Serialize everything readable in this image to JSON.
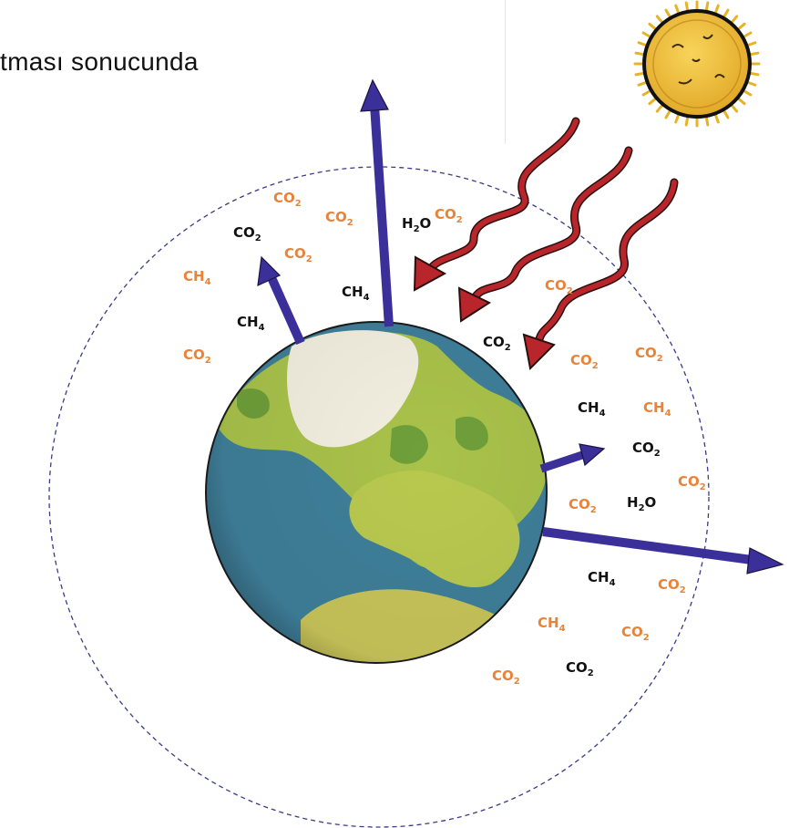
{
  "caption": "tması sonucunda",
  "colors": {
    "orange": "#e8833a",
    "black": "#111111",
    "arrow_outgoing": "#3b2f9a",
    "arrow_incoming": "#9b1c1c",
    "atmosphere_border": "#3a3a8a",
    "ocean": "#3f7f9a",
    "land": "#a9c24a",
    "ice": "#f2efe0",
    "sun": "#f2c232"
  },
  "icons": [
    "sun-icon",
    "earth-icon"
  ],
  "molecules": [
    {
      "label": "CO",
      "sub": "2",
      "color": "orange"
    },
    {
      "label": "CO",
      "sub": "2",
      "color": "orange"
    },
    {
      "label": "CO",
      "sub": "2",
      "color": "black"
    },
    {
      "label": "CO",
      "sub": "2",
      "color": "orange"
    },
    {
      "label": "H",
      "sub": "2",
      "tail": "O",
      "color": "black"
    },
    {
      "label": "CO",
      "sub": "2",
      "color": "orange"
    },
    {
      "label": "CH",
      "sub": "4",
      "color": "orange"
    },
    {
      "label": "CH",
      "sub": "4",
      "color": "black"
    },
    {
      "label": "CH",
      "sub": "4",
      "color": "black"
    },
    {
      "label": "CO",
      "sub": "2",
      "color": "orange"
    },
    {
      "label": "CO",
      "sub": "2",
      "color": "orange"
    },
    {
      "label": "CO",
      "sub": "2",
      "color": "black"
    },
    {
      "label": "CO",
      "sub": "2",
      "color": "orange"
    },
    {
      "label": "CO",
      "sub": "2",
      "color": "orange"
    },
    {
      "label": "CH",
      "sub": "4",
      "color": "black"
    },
    {
      "label": "CH",
      "sub": "4",
      "color": "orange"
    },
    {
      "label": "CO",
      "sub": "2",
      "color": "black"
    },
    {
      "label": "CO",
      "sub": "2",
      "color": "orange"
    },
    {
      "label": "CO",
      "sub": "2",
      "color": "orange"
    },
    {
      "label": "H",
      "sub": "2",
      "tail": "O",
      "color": "black"
    },
    {
      "label": "CH",
      "sub": "4",
      "color": "black"
    },
    {
      "label": "CO",
      "sub": "2",
      "color": "orange"
    },
    {
      "label": "CH",
      "sub": "4",
      "color": "orange"
    },
    {
      "label": "CO",
      "sub": "2",
      "color": "orange"
    },
    {
      "label": "CO",
      "sub": "2",
      "color": "orange"
    },
    {
      "label": "CO",
      "sub": "2",
      "color": "black"
    }
  ]
}
